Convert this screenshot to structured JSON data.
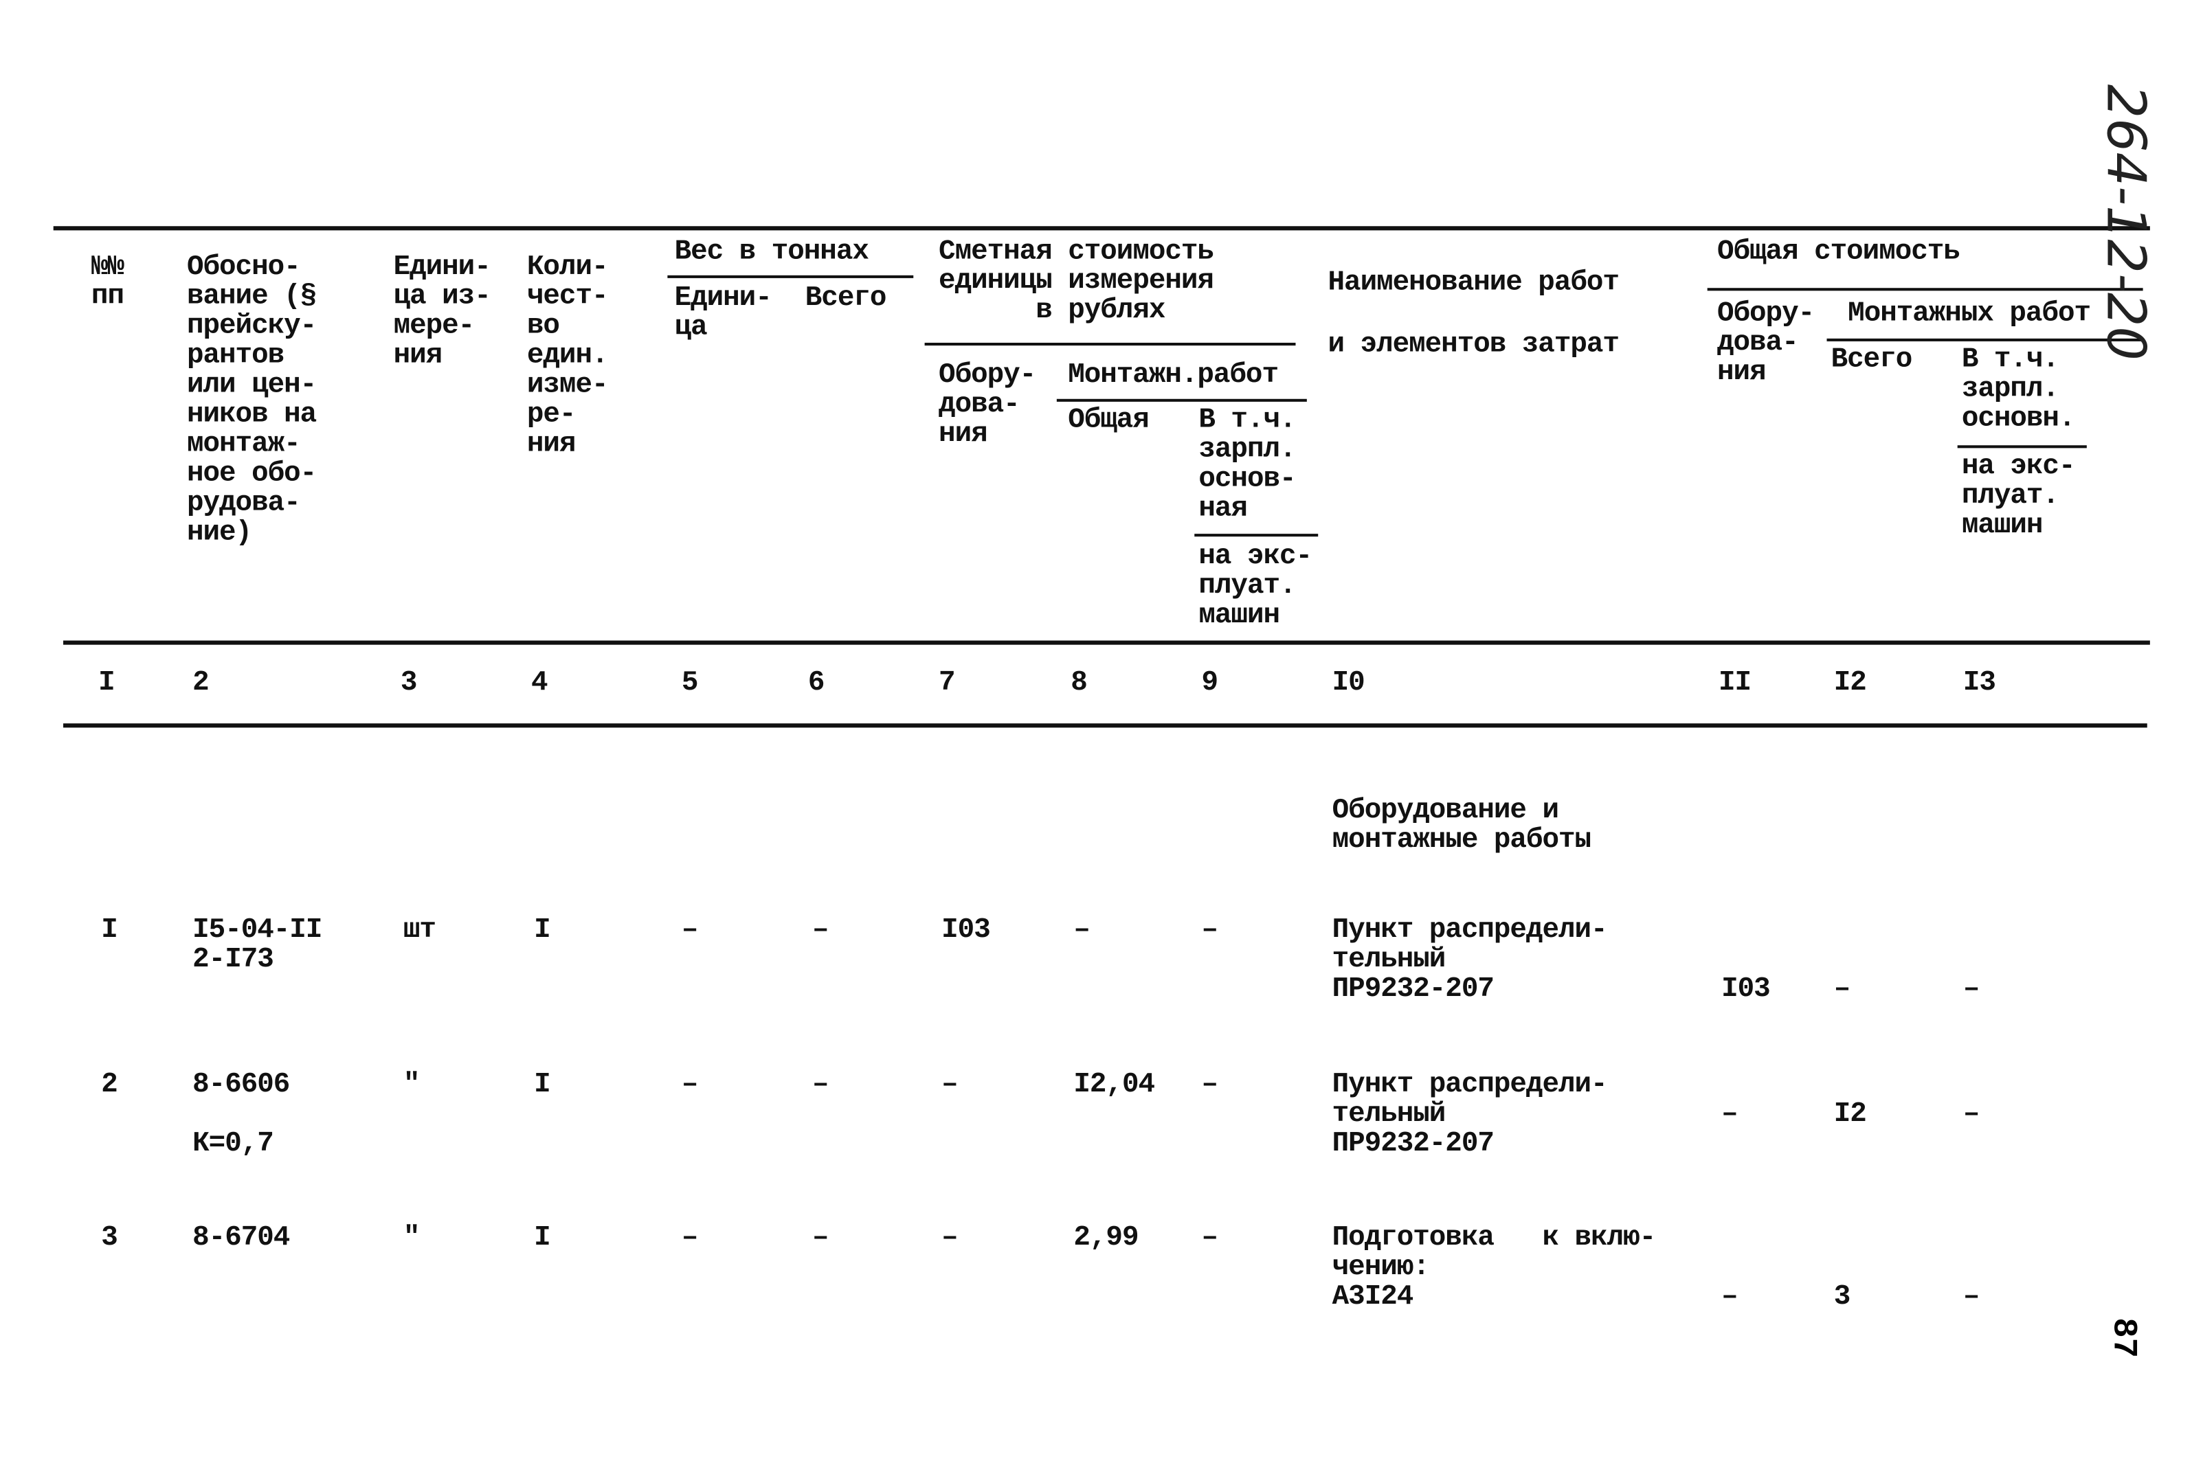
{
  "header": {
    "c1": "№№\nпп",
    "c2": "Обосно-\nвание (§\nпрейску-\nрантов\nили цен-\nников на\nмонтаж-\nное обо-\nрудова-\nние)",
    "c3": "Едини-\nца из-\nмере-\nния",
    "c4": "Коли-\nчест-\nво\nедин.\nизме-\nре-\nния",
    "weight": "Вес в тоннах",
    "weight_unit": "Едини-\nца",
    "weight_total": "Всего",
    "unit_cost": "Сметная стоимость\nединицы измерения\n      в рублях",
    "unit_equipment": "Обору-\nдова-\nния",
    "unit_install": "Монтажн.работ",
    "unit_install_total": "Общая",
    "unit_install_wage": "В т.ч.\nзарпл.\nоснов-\nная",
    "unit_install_machines": "на экс-\nплуат.\nмашин",
    "name": "Наименование работ",
    "name2": "и элементов затрат",
    "total_cost": "Общая стоимость",
    "total_equipment": "Обору-\nдова-\nния",
    "total_install": "Монтажных работ",
    "total_install_all": "Всего",
    "total_install_wage": "В т.ч.\nзарпл.\nосновн.",
    "total_install_machines": "на экс-\nплуат.\nмашин"
  },
  "column_numbers": [
    "I",
    "2",
    "3",
    "4",
    "5",
    "6",
    "7",
    "8",
    "9",
    "I0",
    "II",
    "I2",
    "I3"
  ],
  "section_title": "Оборудование и\nмонтажные работы",
  "rows": [
    {
      "n": "I",
      "basis": "I5-04-II\n2-I73",
      "unit": "шт",
      "qty": "I",
      "w_unit": "–",
      "w_total": "–",
      "c_equip": "I03",
      "c_inst": "–",
      "c_wage": "–",
      "name": "Пункт распредели-\nтельный\nПР9232-207",
      "t_equip": "I03",
      "t_inst": "–",
      "t_wage": "–"
    },
    {
      "n": "2",
      "basis": "8-6606\n\nК=0,7",
      "unit": "\"",
      "qty": "I",
      "w_unit": "–",
      "w_total": "–",
      "c_equip": "–",
      "c_inst": "I2,04",
      "c_wage": "–",
      "name": "Пункт распредели-\nтельный\nПР9232-207",
      "t_equip": "–",
      "t_inst": "I2",
      "t_wage": "–"
    },
    {
      "n": "3",
      "basis": "8-6704",
      "unit": "\"",
      "qty": "I",
      "w_unit": "–",
      "w_total": "–",
      "c_equip": "–",
      "c_inst": "2,99",
      "c_wage": "–",
      "name": "Подготовка   к вклю-\nчению:\nА3I24",
      "t_equip": "–",
      "t_inst": "3",
      "t_wage": "–"
    }
  ],
  "handwritten_code": "264-12-20",
  "page_number": "87"
}
